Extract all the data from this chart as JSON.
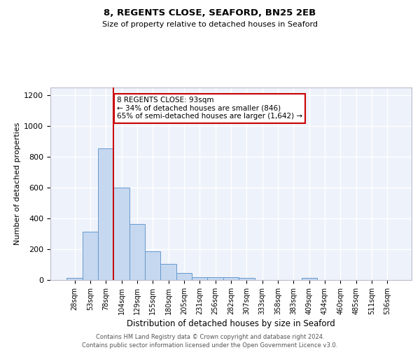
{
  "title1": "8, REGENTS CLOSE, SEAFORD, BN25 2EB",
  "title2": "Size of property relative to detached houses in Seaford",
  "xlabel": "Distribution of detached houses by size in Seaford",
  "ylabel": "Number of detached properties",
  "bar_labels": [
    "28sqm",
    "53sqm",
    "78sqm",
    "104sqm",
    "129sqm",
    "155sqm",
    "180sqm",
    "205sqm",
    "231sqm",
    "256sqm",
    "282sqm",
    "307sqm",
    "333sqm",
    "358sqm",
    "383sqm",
    "409sqm",
    "434sqm",
    "460sqm",
    "485sqm",
    "511sqm",
    "536sqm"
  ],
  "bar_values": [
    15,
    315,
    855,
    600,
    365,
    185,
    105,
    47,
    20,
    17,
    17,
    15,
    0,
    0,
    0,
    12,
    0,
    0,
    0,
    0,
    0
  ],
  "bar_color": "#c5d8f0",
  "bar_edge_color": "#6699cc",
  "vline_x_index": 2.5,
  "vline_color": "#cc0000",
  "annotation_line1": "8 REGENTS CLOSE: 93sqm",
  "annotation_line2": "← 34% of detached houses are smaller (846)",
  "annotation_line3": "65% of semi-detached houses are larger (1,642) →",
  "annotation_box_color": "#ffffff",
  "annotation_box_edge": "#cc0000",
  "ylim": [
    0,
    1250
  ],
  "yticks": [
    0,
    200,
    400,
    600,
    800,
    1000,
    1200
  ],
  "footer1": "Contains HM Land Registry data © Crown copyright and database right 2024.",
  "footer2": "Contains public sector information licensed under the Open Government Licence v3.0.",
  "plot_bg_color": "#eef2fb",
  "grid_color": "#ffffff",
  "title1_fontsize": 9.5,
  "title2_fontsize": 8,
  "ylabel_fontsize": 8,
  "xlabel_fontsize": 8.5,
  "tick_fontsize": 7,
  "annot_fontsize": 7.5,
  "footer_fontsize": 6
}
